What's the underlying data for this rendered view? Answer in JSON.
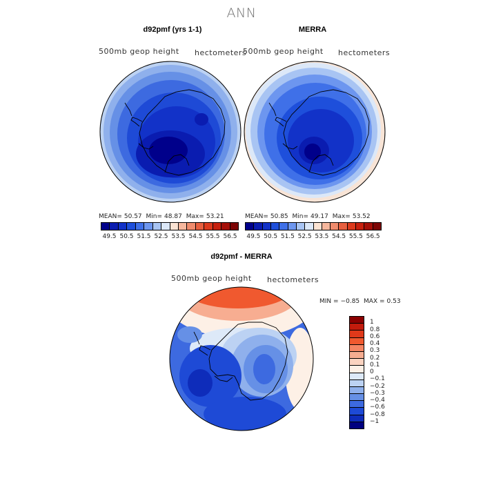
{
  "figure": {
    "title": "ANN"
  },
  "panels": [
    {
      "id": "model",
      "title": "d92pmf (yrs 1-1)",
      "variable": "500mb  geop  height",
      "units": "hectometers",
      "stats": {
        "mean_label": "MEAN=",
        "mean": "50.57",
        "min_label": "Min=",
        "min": "48.87",
        "max_label": "Max=",
        "max": "53.21"
      }
    },
    {
      "id": "obs",
      "title": "MERRA",
      "variable": "500mb  geop  height",
      "units": "hectometers",
      "stats": {
        "mean_label": "MEAN=",
        "mean": "50.85",
        "min_label": "Min=",
        "min": "49.17",
        "max_label": "Max=",
        "max": "53.52"
      }
    },
    {
      "id": "diff",
      "title": "d92pmf - MERRA",
      "variable": "500mb  geop  height",
      "units": "hectometers",
      "stats": {
        "min_label": "MIN =",
        "min": "−0.85",
        "max_label": "MAX =",
        "max": "0.53"
      }
    }
  ],
  "colorbar_top": {
    "ticks": [
      "49.5",
      "50.5",
      "51.5",
      "52.5",
      "53.5",
      "54.5",
      "55.5",
      "56.5"
    ],
    "colors": [
      "#00008b",
      "#0a1cb0",
      "#1232c8",
      "#1e4fdb",
      "#3f70e8",
      "#6d96ef",
      "#a8c4f3",
      "#dce8f8",
      "#fbe3d3",
      "#f6b79d",
      "#ef8b6d",
      "#e75f3f",
      "#dc3a1d",
      "#c7200e",
      "#a50f08",
      "#7d0505"
    ]
  },
  "colorbar_diff": {
    "ticks": [
      "1",
      "0.8",
      "0.6",
      "0.4",
      "0.3",
      "0.2",
      "0.1",
      "0",
      "−0.1",
      "−0.2",
      "−0.3",
      "−0.4",
      "−0.6",
      "−0.8",
      "−1"
    ],
    "colors": [
      "#8b0000",
      "#c21b0c",
      "#e0391a",
      "#f0592f",
      "#f58563",
      "#f7ad91",
      "#fbd3c0",
      "#fdf0e6",
      "#dde9f8",
      "#bcd2f3",
      "#8fb0ec",
      "#6690e6",
      "#3d6ae0",
      "#1e4ad6",
      "#0e2cba",
      "#000080"
    ]
  },
  "colors": {
    "map_edge": "#000000",
    "coast": "#000000",
    "title_gray": "#6f6f6f"
  }
}
